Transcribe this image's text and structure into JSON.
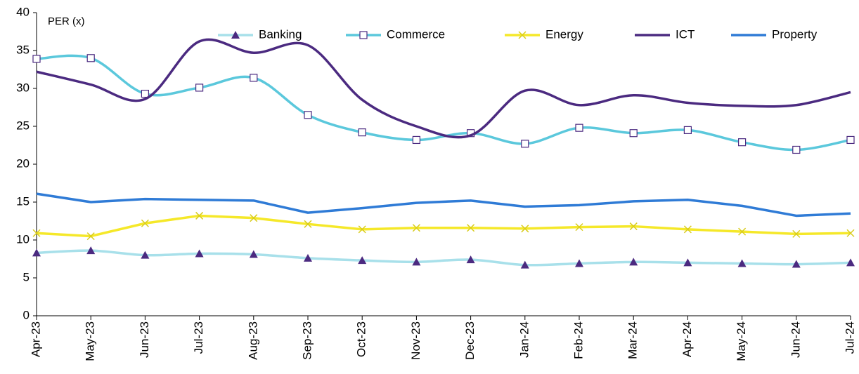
{
  "chart_data": {
    "type": "line",
    "y_label": "PER (x)",
    "categories": [
      "Apr-23",
      "May-23",
      "Jun-23",
      "Jul-23",
      "Aug-23",
      "Sep-23",
      "Oct-23",
      "Nov-23",
      "Dec-23",
      "Jan-24",
      "Feb-24",
      "Mar-24",
      "Apr-24",
      "May-24",
      "Jun-24",
      "Jul-24"
    ],
    "series": [
      {
        "name": "Banking",
        "color": "#a8e0ea",
        "marker": "triangle",
        "marker_color": "#4b2a80",
        "smooth": true,
        "values": [
          8.3,
          8.6,
          8.0,
          8.2,
          8.1,
          7.6,
          7.3,
          7.1,
          7.4,
          6.7,
          6.9,
          7.1,
          7.0,
          6.9,
          6.8,
          7.0
        ]
      },
      {
        "name": "Commerce",
        "color": "#5bc8dc",
        "marker": "square",
        "marker_color": "#4b2a80",
        "smooth": true,
        "values": [
          33.9,
          34.0,
          29.3,
          30.1,
          31.4,
          26.5,
          24.2,
          23.2,
          24.1,
          22.7,
          24.8,
          24.1,
          24.5,
          22.9,
          21.9,
          23.2
        ]
      },
      {
        "name": "Energy",
        "color": "#f5e829",
        "marker": "cross",
        "marker_color": "#d8cc1c",
        "smooth": false,
        "values": [
          10.9,
          10.5,
          12.2,
          13.2,
          12.9,
          12.1,
          11.4,
          11.6,
          11.6,
          11.5,
          11.7,
          11.8,
          11.4,
          11.1,
          10.8,
          10.9
        ]
      },
      {
        "name": "ICT",
        "color": "#4b2a80",
        "marker": "none",
        "marker_color": "#4b2a80",
        "smooth": true,
        "values": [
          32.2,
          30.5,
          28.6,
          36.2,
          34.7,
          35.7,
          28.5,
          25.0,
          23.8,
          29.7,
          27.8,
          29.1,
          28.1,
          27.7,
          27.8,
          29.5
        ]
      },
      {
        "name": "Property",
        "color": "#2f7bd6",
        "marker": "none",
        "marker_color": "#2f7bd6",
        "smooth": false,
        "values": [
          16.1,
          15.0,
          15.4,
          15.3,
          15.2,
          13.6,
          14.2,
          14.9,
          15.2,
          14.4,
          14.6,
          15.1,
          15.3,
          14.5,
          13.2,
          13.5
        ]
      }
    ],
    "ylim": [
      0,
      40
    ],
    "yticks": [
      0,
      5,
      10,
      15,
      20,
      25,
      30,
      35,
      40
    ],
    "grid": false,
    "legend": "top"
  }
}
